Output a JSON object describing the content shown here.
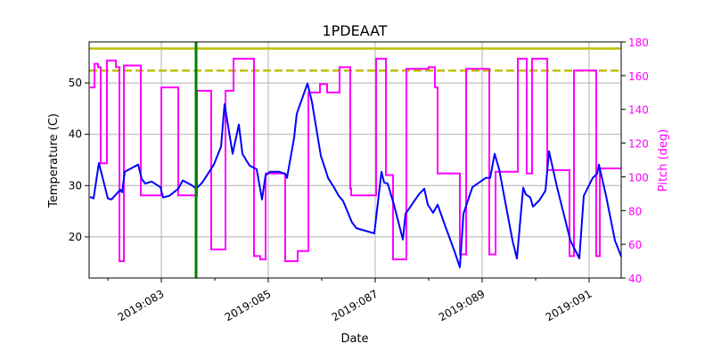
{
  "chart_data": {
    "type": "line",
    "title": "1PDEAAT",
    "xlabel": "Date",
    "ylabel": "Temperature (C)",
    "ylabel_right": "Pitch (deg)",
    "xlim": [
      81.65,
      91.6
    ],
    "ylim": [
      12,
      58
    ],
    "ylim_right": [
      40,
      180
    ],
    "x_ticks": [
      83,
      85,
      87,
      89,
      91
    ],
    "x_tick_labels": [
      "2019:083",
      "2019:085",
      "2019:087",
      "2019:089",
      "2019:091"
    ],
    "x_minor_ticks": [
      82,
      84,
      86,
      88,
      90
    ],
    "y_ticks": [
      20,
      30,
      40,
      50
    ],
    "y_tick_labels": [
      "20",
      "30",
      "40",
      "50"
    ],
    "y_ticks_right": [
      40,
      60,
      80,
      100,
      120,
      140,
      160,
      180
    ],
    "y_tick_labels_right": [
      "40",
      "60",
      "80",
      "100",
      "120",
      "140",
      "160",
      "180"
    ],
    "grid": true,
    "colors": {
      "temperature": "#0000ff",
      "pitch": "#ff00ff",
      "limit": "#bfbf00",
      "marker": "#008000",
      "right_axis": "#ff00ff"
    },
    "limits": [
      {
        "value": 56.7,
        "style": "solid"
      },
      {
        "value": 52.4,
        "style": "dashed"
      }
    ],
    "vertical_marker": 83.65,
    "series": [
      {
        "axis": "left",
        "points": [
          [
            81.667,
            27.8
          ],
          [
            81.733,
            27.5
          ],
          [
            81.833,
            34.4
          ],
          [
            82.0,
            27.5
          ],
          [
            82.067,
            27.3
          ],
          [
            82.233,
            29.2
          ],
          [
            82.267,
            28.7
          ],
          [
            82.317,
            32.7
          ],
          [
            82.567,
            34.1
          ],
          [
            82.633,
            31.3
          ],
          [
            82.7,
            30.4
          ],
          [
            82.817,
            30.8
          ],
          [
            82.983,
            29.7
          ],
          [
            83.033,
            27.7
          ],
          [
            83.15,
            28.0
          ],
          [
            83.317,
            29.4
          ],
          [
            83.4,
            31.0
          ],
          [
            83.567,
            30.1
          ],
          [
            83.65,
            29.4
          ],
          [
            83.767,
            30.6
          ],
          [
            83.983,
            34.1
          ],
          [
            84.117,
            37.6
          ],
          [
            84.183,
            45.9
          ],
          [
            84.333,
            36.2
          ],
          [
            84.45,
            41.9
          ],
          [
            84.517,
            36.2
          ],
          [
            84.65,
            33.9
          ],
          [
            84.783,
            33.2
          ],
          [
            84.883,
            27.3
          ],
          [
            84.95,
            32.0
          ],
          [
            85.033,
            32.7
          ],
          [
            85.2,
            32.7
          ],
          [
            85.317,
            32.3
          ],
          [
            85.35,
            31.5
          ],
          [
            85.483,
            39.3
          ],
          [
            85.533,
            44.0
          ],
          [
            85.733,
            49.9
          ],
          [
            85.817,
            46.3
          ],
          [
            85.983,
            35.8
          ],
          [
            86.067,
            33.2
          ],
          [
            86.117,
            31.5
          ],
          [
            86.233,
            29.6
          ],
          [
            86.317,
            28.0
          ],
          [
            86.4,
            27.0
          ],
          [
            86.567,
            22.8
          ],
          [
            86.65,
            21.7
          ],
          [
            86.983,
            20.7
          ],
          [
            87.117,
            32.7
          ],
          [
            87.167,
            30.6
          ],
          [
            87.233,
            30.4
          ],
          [
            87.35,
            26.3
          ],
          [
            87.517,
            19.5
          ],
          [
            87.567,
            24.5
          ],
          [
            87.817,
            28.3
          ],
          [
            87.917,
            29.4
          ],
          [
            87.983,
            26.3
          ],
          [
            88.083,
            24.7
          ],
          [
            88.167,
            26.3
          ],
          [
            88.317,
            21.9
          ],
          [
            88.483,
            17.2
          ],
          [
            88.583,
            14.1
          ],
          [
            88.65,
            24.5
          ],
          [
            88.817,
            29.7
          ],
          [
            89.067,
            31.5
          ],
          [
            89.15,
            31.5
          ],
          [
            89.233,
            36.2
          ],
          [
            89.317,
            33.2
          ],
          [
            89.567,
            19.3
          ],
          [
            89.65,
            15.8
          ],
          [
            89.767,
            29.6
          ],
          [
            89.817,
            28.3
          ],
          [
            89.9,
            27.7
          ],
          [
            89.95,
            25.9
          ],
          [
            90.067,
            27.1
          ],
          [
            90.183,
            29.0
          ],
          [
            90.25,
            36.7
          ],
          [
            90.4,
            29.7
          ],
          [
            90.65,
            19.3
          ],
          [
            90.817,
            15.8
          ],
          [
            90.9,
            28.0
          ],
          [
            91.067,
            31.5
          ],
          [
            91.15,
            32.3
          ],
          [
            91.183,
            34.1
          ],
          [
            91.317,
            28.0
          ],
          [
            91.483,
            19.3
          ],
          [
            91.6,
            16.2
          ]
        ]
      },
      {
        "axis": "right",
        "drawstyle": "steps-post",
        "points": [
          [
            81.667,
            153
          ],
          [
            81.75,
            167
          ],
          [
            81.817,
            165
          ],
          [
            81.867,
            108
          ],
          [
            81.983,
            169
          ],
          [
            82.15,
            165
          ],
          [
            82.217,
            50
          ],
          [
            82.3,
            166
          ],
          [
            82.617,
            89
          ],
          [
            83.0,
            153
          ],
          [
            83.317,
            89
          ],
          [
            83.667,
            151
          ],
          [
            83.933,
            57
          ],
          [
            84.2,
            151
          ],
          [
            84.35,
            170
          ],
          [
            84.733,
            53
          ],
          [
            84.85,
            51
          ],
          [
            84.95,
            102
          ],
          [
            85.317,
            50
          ],
          [
            85.55,
            56
          ],
          [
            85.75,
            150
          ],
          [
            85.967,
            155
          ],
          [
            86.1,
            150
          ],
          [
            86.333,
            165
          ],
          [
            86.533,
            93
          ],
          [
            86.55,
            89
          ],
          [
            87.017,
            170
          ],
          [
            87.2,
            101
          ],
          [
            87.333,
            51
          ],
          [
            87.583,
            164
          ],
          [
            88.0,
            165
          ],
          [
            88.117,
            153
          ],
          [
            88.167,
            102
          ],
          [
            88.583,
            54
          ],
          [
            88.7,
            164
          ],
          [
            89.133,
            54
          ],
          [
            89.25,
            103
          ],
          [
            89.667,
            170
          ],
          [
            89.833,
            102
          ],
          [
            89.933,
            170
          ],
          [
            90.217,
            104
          ],
          [
            90.633,
            53
          ],
          [
            90.717,
            163
          ],
          [
            91.133,
            53
          ],
          [
            91.2,
            105
          ],
          [
            91.6,
            105
          ]
        ]
      }
    ]
  }
}
